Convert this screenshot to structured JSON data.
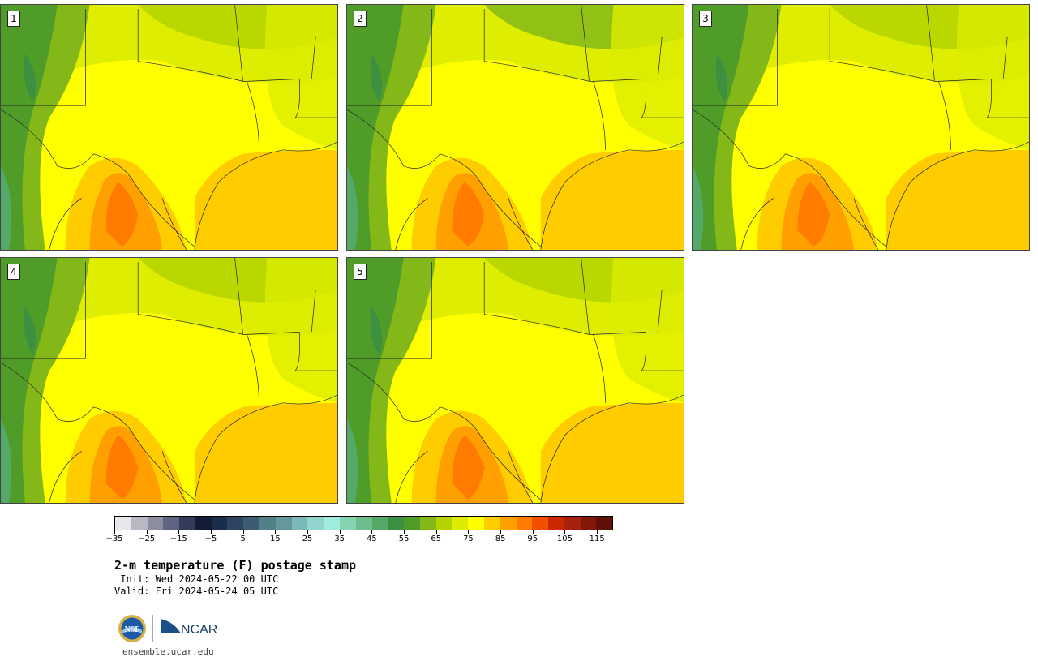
{
  "title": "2-m temperature (F) postage stamp",
  "init": " Init: Wed 2024-05-22 00 UTC",
  "valid": "Valid: Fri 2024-05-24 05 UTC",
  "website": "ensemble.ucar.edu",
  "logos": {
    "nsf_text": "NSF",
    "ncar_text": "NCAR",
    "nsf_icon": "nsf-seal-icon",
    "ncar_icon": "ncar-logo-icon"
  },
  "panels": [
    {
      "number": "1"
    },
    {
      "number": "2"
    },
    {
      "number": "3"
    },
    {
      "number": "4"
    },
    {
      "number": "5"
    }
  ],
  "colorbar": {
    "tick_labels": [
      "−35",
      "−25",
      "−15",
      "−5",
      "5",
      "15",
      "25",
      "35",
      "45",
      "55",
      "65",
      "75",
      "85",
      "95",
      "105",
      "115"
    ],
    "colors": [
      "#e8e8ec",
      "#b8b8c4",
      "#8c8ea0",
      "#606480",
      "#343c5c",
      "#141c38",
      "#1c2c4c",
      "#2c4460",
      "#3c5c74",
      "#508088",
      "#64989c",
      "#7cb8b8",
      "#90d4cc",
      "#a0ecdc",
      "#84d4b0",
      "#6cbc8c",
      "#54a868",
      "#3c9040",
      "#509c28",
      "#84b818",
      "#b4d400",
      "#dcec00",
      "#ffff00",
      "#ffcc00",
      "#ffa000",
      "#ff7c00",
      "#f05000",
      "#cc2800",
      "#a82010",
      "#841808",
      "#601008"
    ]
  }
}
